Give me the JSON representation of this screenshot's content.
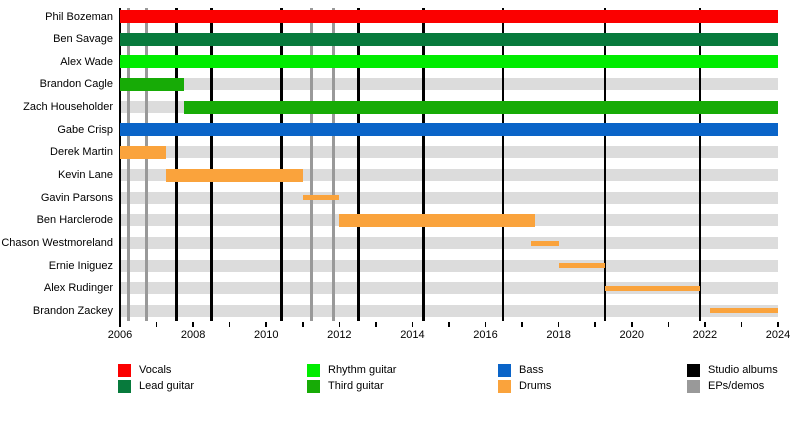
{
  "chart_data": {
    "type": "timeline-gantt",
    "description": "Band members timeline",
    "x_axis": {
      "min": 2006,
      "max": 2024,
      "labeled_ticks": [
        2006,
        2008,
        2010,
        2012,
        2014,
        2016,
        2018,
        2020,
        2022,
        2024
      ],
      "minor_tick_step": 1,
      "tick_labels": [
        "2006",
        "2008",
        "2010",
        "2012",
        "2014",
        "2016",
        "2018",
        "2020",
        "2022",
        "2024"
      ]
    },
    "members": [
      {
        "name": "Phil Bozeman",
        "bars": [
          {
            "start": 2006,
            "end": 2024,
            "role": "Vocals",
            "thin": false
          }
        ]
      },
      {
        "name": "Ben Savage",
        "bars": [
          {
            "start": 2006,
            "end": 2024,
            "role": "Lead guitar",
            "thin": false
          }
        ]
      },
      {
        "name": "Alex Wade",
        "bars": [
          {
            "start": 2006,
            "end": 2024,
            "role": "Rhythm guitar",
            "thin": false
          }
        ]
      },
      {
        "name": "Brandon Cagle",
        "bars": [
          {
            "start": 2006,
            "end": 2007.75,
            "role": "Third guitar",
            "thin": false
          }
        ]
      },
      {
        "name": "Zach Householder",
        "bars": [
          {
            "start": 2007.75,
            "end": 2024,
            "role": "Third guitar",
            "thin": false
          }
        ]
      },
      {
        "name": "Gabe Crisp",
        "bars": [
          {
            "start": 2006,
            "end": 2024,
            "role": "Bass",
            "thin": false
          }
        ]
      },
      {
        "name": "Derek Martin",
        "bars": [
          {
            "start": 2006,
            "end": 2007.25,
            "role": "Drums",
            "thin": false
          }
        ]
      },
      {
        "name": "Kevin Lane",
        "bars": [
          {
            "start": 2007.25,
            "end": 2011.0,
            "role": "Drums",
            "thin": false
          }
        ]
      },
      {
        "name": "Gavin Parsons",
        "bars": [
          {
            "start": 2011.0,
            "end": 2012.0,
            "role": "Drums",
            "thin": true
          }
        ]
      },
      {
        "name": "Ben Harclerode",
        "bars": [
          {
            "start": 2012.0,
            "end": 2017.35,
            "role": "Drums",
            "thin": false
          }
        ]
      },
      {
        "name": "Chason Westmoreland",
        "bars": [
          {
            "start": 2017.25,
            "end": 2018.0,
            "role": "Drums",
            "thin": true
          }
        ]
      },
      {
        "name": "Ernie Iniguez",
        "bars": [
          {
            "start": 2018.0,
            "end": 2019.27,
            "role": "Drums",
            "thin": true
          }
        ]
      },
      {
        "name": "Alex Rudinger",
        "bars": [
          {
            "start": 2019.27,
            "end": 2021.87,
            "role": "Drums",
            "thin": true
          }
        ]
      },
      {
        "name": "Brandon Zackey",
        "bars": [
          {
            "start": 2022.15,
            "end": 2024,
            "role": "Drums",
            "thin": true
          }
        ]
      }
    ],
    "event_lines": {
      "studio_albums": [
        2007.55,
        2008.5,
        2010.42,
        2012.52,
        2014.3,
        2016.48,
        2019.27,
        2021.87
      ],
      "eps_demos": [
        2006.23,
        2006.73,
        2011.24,
        2011.84
      ]
    },
    "colors": {
      "Vocals": "#FB0000",
      "Lead guitar": "#077A3C",
      "Rhythm guitar": "#00EC00",
      "Third guitar": "#17AB06",
      "Bass": "#0A64C8",
      "Drums": "#FAA33C",
      "Studio albums": "#000000",
      "EPs/demos": "#999999",
      "row_stripe": "#DCDCDC"
    },
    "legend": [
      {
        "label": "Vocals"
      },
      {
        "label": "Lead guitar"
      },
      {
        "label": "Rhythm guitar"
      },
      {
        "label": "Third guitar"
      },
      {
        "label": "Bass"
      },
      {
        "label": "Drums"
      },
      {
        "label": "Studio albums"
      },
      {
        "label": "EPs/demos"
      }
    ]
  }
}
